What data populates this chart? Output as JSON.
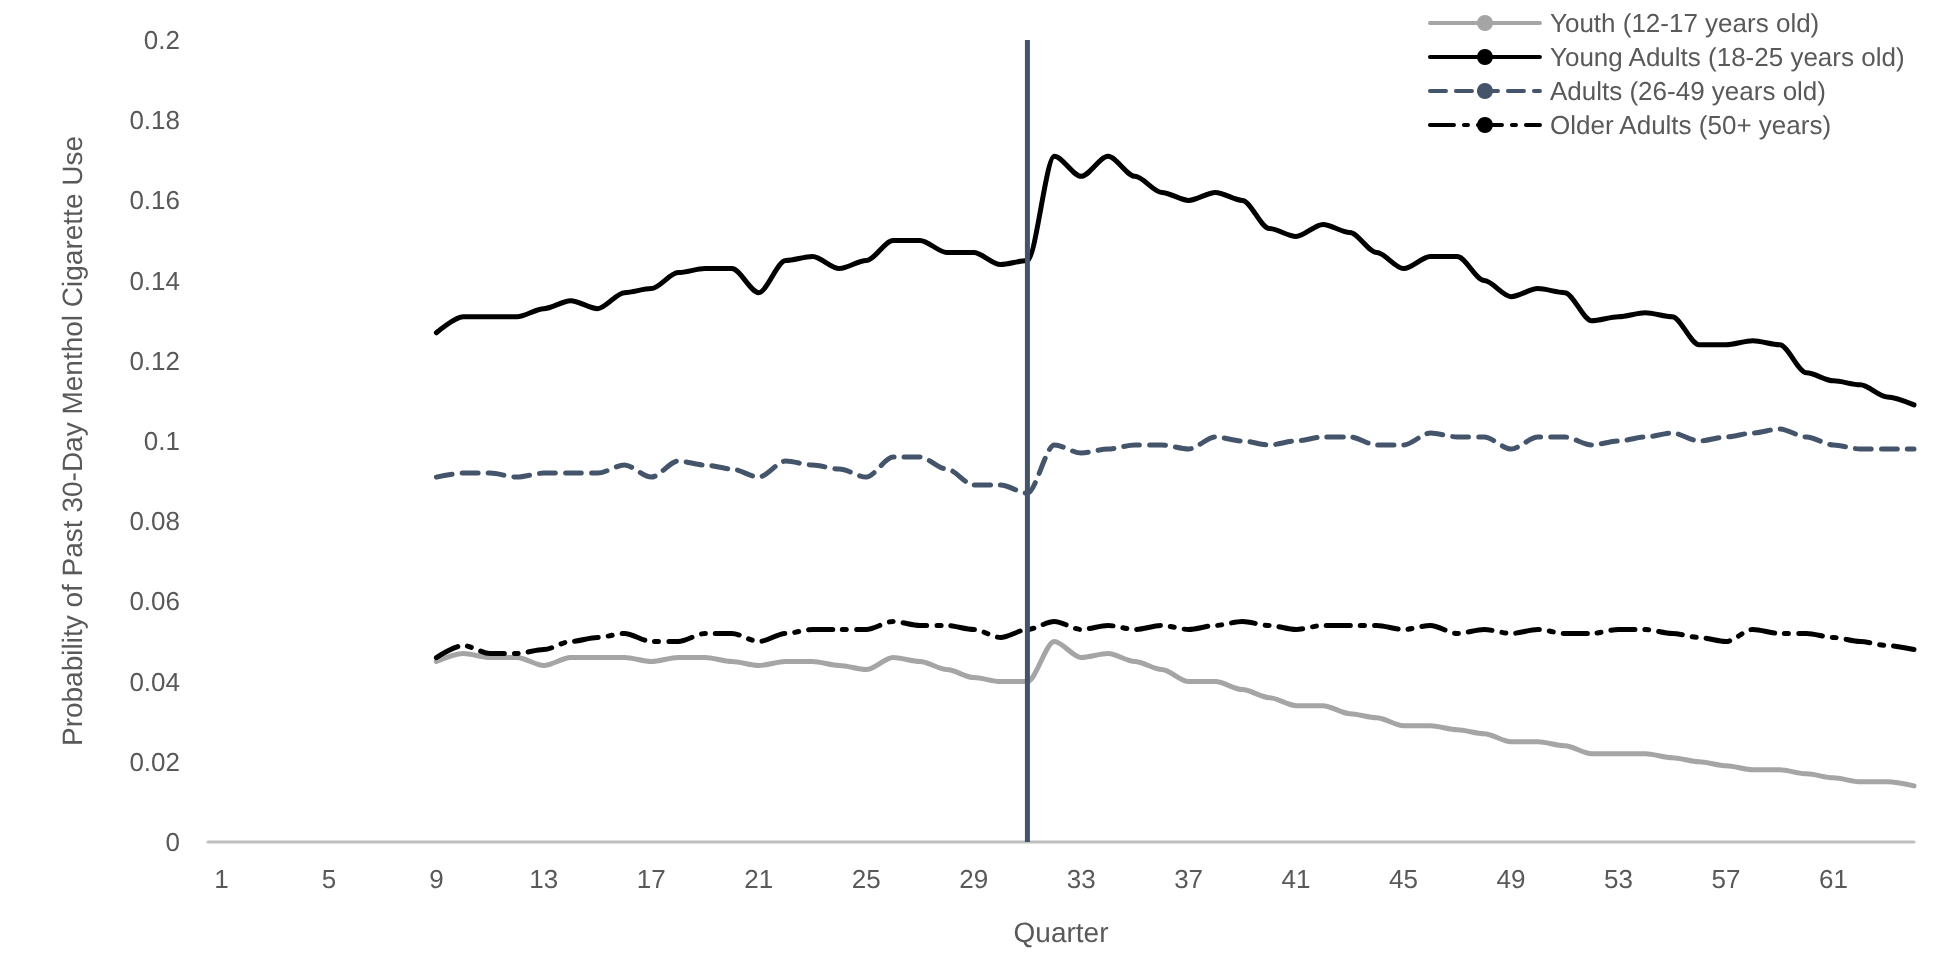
{
  "chart_data": {
    "type": "line",
    "xlabel": "Quarter",
    "ylabel": "Probability of Past 30-Day Menthol Cigarette Use",
    "x": [
      9,
      10,
      11,
      12,
      13,
      14,
      15,
      16,
      17,
      18,
      19,
      20,
      21,
      22,
      23,
      24,
      25,
      26,
      27,
      28,
      29,
      30,
      31,
      32,
      33,
      34,
      35,
      36,
      37,
      38,
      39,
      40,
      41,
      42,
      43,
      44,
      45,
      46,
      47,
      48,
      49,
      50,
      51,
      52,
      53,
      54,
      55,
      56,
      57,
      58,
      59,
      60,
      61,
      62,
      63,
      64
    ],
    "xlim": [
      0.5,
      64
    ],
    "xticks": [
      1,
      5,
      9,
      13,
      17,
      21,
      25,
      29,
      33,
      37,
      41,
      45,
      49,
      53,
      57,
      61
    ],
    "ylim": [
      0,
      0.2
    ],
    "yticks": [
      0,
      0.02,
      0.04,
      0.06,
      0.08,
      0.1,
      0.12,
      0.14,
      0.16,
      0.18,
      0.2
    ],
    "grid": false,
    "legend": "top right",
    "marker": "none",
    "ref_lines": [
      {
        "axis": "x",
        "value": 31,
        "color": "#44546a"
      }
    ],
    "series": [
      {
        "name": "Youth (12-17 years old)",
        "color": "#a5a5a5",
        "line_style": "solid",
        "values": [
          0.045,
          0.047,
          0.046,
          0.046,
          0.044,
          0.046,
          0.046,
          0.046,
          0.045,
          0.046,
          0.046,
          0.045,
          0.044,
          0.045,
          0.045,
          0.044,
          0.043,
          0.046,
          0.045,
          0.043,
          0.041,
          0.04,
          0.04,
          0.05,
          0.046,
          0.047,
          0.045,
          0.043,
          0.04,
          0.04,
          0.038,
          0.036,
          0.034,
          0.034,
          0.032,
          0.031,
          0.029,
          0.029,
          0.028,
          0.027,
          0.025,
          0.025,
          0.024,
          0.022,
          0.022,
          0.022,
          0.021,
          0.02,
          0.019,
          0.018,
          0.018,
          0.017,
          0.016,
          0.015,
          0.015,
          0.014
        ]
      },
      {
        "name": "Young Adults (18-25 years old)",
        "color": "#000000",
        "line_style": "solid",
        "values": [
          0.127,
          0.131,
          0.131,
          0.131,
          0.133,
          0.135,
          0.133,
          0.137,
          0.138,
          0.142,
          0.143,
          0.143,
          0.137,
          0.145,
          0.146,
          0.143,
          0.145,
          0.15,
          0.15,
          0.147,
          0.147,
          0.144,
          0.145,
          0.171,
          0.166,
          0.171,
          0.166,
          0.162,
          0.16,
          0.162,
          0.16,
          0.153,
          0.151,
          0.154,
          0.152,
          0.147,
          0.143,
          0.146,
          0.146,
          0.14,
          0.136,
          0.138,
          0.137,
          0.13,
          0.131,
          0.132,
          0.131,
          0.124,
          0.124,
          0.125,
          0.124,
          0.117,
          0.115,
          0.114,
          0.111,
          0.109
        ]
      },
      {
        "name": "Adults (26-49 years old)",
        "color": "#44546a",
        "line_style": "dashed",
        "values": [
          0.091,
          0.092,
          0.092,
          0.091,
          0.092,
          0.092,
          0.092,
          0.094,
          0.091,
          0.095,
          0.094,
          0.093,
          0.091,
          0.095,
          0.094,
          0.093,
          0.091,
          0.096,
          0.096,
          0.093,
          0.089,
          0.089,
          0.087,
          0.099,
          0.097,
          0.098,
          0.099,
          0.099,
          0.098,
          0.101,
          0.1,
          0.099,
          0.1,
          0.101,
          0.101,
          0.099,
          0.099,
          0.102,
          0.101,
          0.101,
          0.098,
          0.101,
          0.101,
          0.099,
          0.1,
          0.101,
          0.102,
          0.1,
          0.101,
          0.102,
          0.103,
          0.101,
          0.099,
          0.098,
          0.098,
          0.098
        ]
      },
      {
        "name": "Older Adults (50+ years)",
        "color": "#000000",
        "line_style": "dashdot",
        "values": [
          0.046,
          0.049,
          0.047,
          0.047,
          0.048,
          0.05,
          0.051,
          0.052,
          0.05,
          0.05,
          0.052,
          0.052,
          0.05,
          0.052,
          0.053,
          0.053,
          0.053,
          0.055,
          0.054,
          0.054,
          0.053,
          0.051,
          0.053,
          0.055,
          0.053,
          0.054,
          0.053,
          0.054,
          0.053,
          0.054,
          0.055,
          0.054,
          0.053,
          0.054,
          0.054,
          0.054,
          0.053,
          0.054,
          0.052,
          0.053,
          0.052,
          0.053,
          0.052,
          0.052,
          0.053,
          0.053,
          0.052,
          0.051,
          0.05,
          0.053,
          0.052,
          0.052,
          0.051,
          0.05,
          0.049,
          0.048
        ]
      }
    ]
  }
}
